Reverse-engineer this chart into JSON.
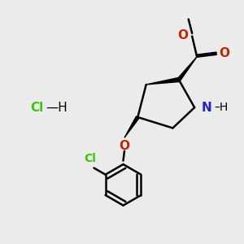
{
  "background_color": "#ebebeb",
  "bond_color": "#000000",
  "nitrogen_color": "#2222cc",
  "oxygen_color": "#cc2200",
  "chlorine_color": "#33cc00",
  "fig_width": 3.0,
  "fig_height": 3.0,
  "dpi": 100,
  "xlim": [
    0,
    10
  ],
  "ylim": [
    0,
    10
  ]
}
